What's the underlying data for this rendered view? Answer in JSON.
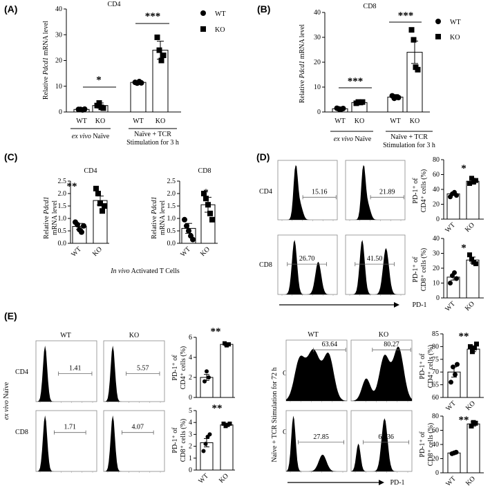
{
  "panels": {
    "A": {
      "label": "(A)",
      "title": "CD4",
      "ylabel_pre": "Relative ",
      "ylabel_gene": "Pdcd1",
      "ylabel_post": " mRNA level",
      "ylim": [
        0,
        40
      ],
      "yticks": [
        "0",
        "10",
        "20",
        "30",
        "40"
      ],
      "categories": [
        "WT",
        "KO",
        "WT",
        "KO"
      ],
      "group1_a": "ex vivo",
      "group1_b": " Naïve",
      "group2_l1": "Naïve + TCR",
      "group2_l2": "Stimulation for 3 h",
      "legend": [
        "WT",
        "KO"
      ],
      "sig": [
        "*",
        "***"
      ],
      "means": [
        1,
        2.5,
        11.5,
        24
      ],
      "errors": [
        0.3,
        1,
        0.5,
        3.5
      ],
      "points": [
        [
          1,
          1,
          0.8,
          1.1
        ],
        [
          2.5,
          3.5,
          1.8,
          1.5
        ],
        [
          11.5,
          11.2,
          11.8,
          11.3
        ],
        [
          29,
          24,
          20,
          22
        ]
      ]
    },
    "B": {
      "label": "(B)",
      "title": "CD8",
      "ylabel_pre": "Relative ",
      "ylabel_gene": "Pdcd1",
      "ylabel_post": " mRNA level",
      "ylim": [
        0,
        40
      ],
      "yticks": [
        "0",
        "10",
        "20",
        "30",
        "40"
      ],
      "categories": [
        "WT",
        "KO",
        "WT",
        "KO"
      ],
      "group1_a": "ex vivo",
      "group1_b": " Naïve",
      "group2_l1": "Naïve + TCR",
      "group2_l2": "Stimulation for 3 h",
      "legend": [
        "WT",
        "KO"
      ],
      "sig": [
        "***",
        "***"
      ],
      "means": [
        1.3,
        3.8,
        6,
        24
      ],
      "errors": [
        0.4,
        0.5,
        1,
        4.5
      ],
      "points": [
        [
          1.5,
          1.2,
          1.1,
          1.4
        ],
        [
          3.5,
          4,
          3.8,
          4
        ],
        [
          6.5,
          5.5,
          6,
          5.8
        ],
        [
          33,
          29,
          18,
          17
        ]
      ]
    },
    "C": {
      "label": "(C)",
      "caption_a": "In vivo",
      "caption_b": " Activated T Cells",
      "ylabel_pre": "Relative ",
      "ylabel_gene": "Pdcd1",
      "ylabel_l2": "mRNA level",
      "ylim": [
        0,
        2.5
      ],
      "yticks": [
        "0.0",
        "0.5",
        "1.0",
        "1.5",
        "2.0",
        "2.5"
      ],
      "subplots": [
        {
          "title": "CD4",
          "sig": "**",
          "categories": [
            "WT",
            "KO"
          ],
          "means": [
            0.68,
            1.72
          ],
          "errors": [
            0.12,
            0.18
          ],
          "points": [
            [
              0.85,
              0.75,
              0.55,
              0.45,
              0.7
            ],
            [
              2.2,
              2.0,
              1.6,
              1.3,
              1.5
            ]
          ]
        },
        {
          "title": "CD8",
          "sig": "*",
          "categories": [
            "WT",
            "KO"
          ],
          "means": [
            0.6,
            1.55
          ],
          "errors": [
            0.2,
            0.3
          ],
          "points": [
            [
              0.95,
              0.7,
              0.5,
              0.3,
              0.15
            ],
            [
              2.0,
              1.8,
              1.55,
              1.2,
              0.95
            ]
          ]
        }
      ]
    },
    "D": {
      "label": "(D)",
      "xaxis_label": "PD-1",
      "row_labels": [
        "CD4",
        "CD8"
      ],
      "col_labels": [
        "WT",
        "KO"
      ],
      "hist_values": [
        "15.16",
        "21.89",
        "26.70",
        "41.50"
      ],
      "bars": [
        {
          "ylabel_l1": "PD-1⁺ of",
          "ylabel_l2": "CD4⁺ cells (%)",
          "ylim": [
            0,
            80
          ],
          "yticks": [
            "0",
            "20",
            "40",
            "60",
            "80"
          ],
          "sig": "*",
          "categories": [
            "WT",
            "KO"
          ],
          "means": [
            34,
            51
          ],
          "errors": [
            2,
            4
          ],
          "points": [
            [
              30,
              34,
              36,
              32
            ],
            [
              48,
              55,
              50,
              52
            ]
          ]
        },
        {
          "ylabel_l1": "PD-1⁺ of",
          "ylabel_l2": "CD8⁺ cells (%)",
          "ylim": [
            0,
            40
          ],
          "yticks": [
            "0",
            "10",
            "20",
            "30",
            "40"
          ],
          "sig": "*",
          "categories": [
            "WT",
            "KO"
          ],
          "means": [
            14,
            25.5
          ],
          "errors": [
            2,
            2
          ],
          "points": [
            [
              10,
              15,
              17,
              13
            ],
            [
              29,
              26,
              24,
              23
            ]
          ]
        }
      ]
    },
    "E": {
      "label": "(E)",
      "left_side_a": "ex vivo",
      "left_side_b": " Naïve",
      "right_side": "Naïve + TCR Stimulation for 72 h",
      "row_labels": [
        "CD4",
        "CD8"
      ],
      "col_labels": [
        "WT",
        "KO"
      ],
      "xaxis_label": "PD-1",
      "left_hist_values": [
        "1.41",
        "5.57",
        "1.71",
        "4.07"
      ],
      "right_hist_values": [
        "63.64",
        "80.27",
        "27.85",
        "67.36"
      ],
      "left_bars": [
        {
          "ylabel_l1": "PD-1⁺ of",
          "ylabel_l2": "CD4⁺ cells (%)",
          "ylim": [
            0,
            6
          ],
          "yticks": [
            "0",
            "2",
            "4",
            "6"
          ],
          "sig": "**",
          "categories": [
            "WT",
            "KO"
          ],
          "means": [
            2.0,
            5.3
          ],
          "errors": [
            0.3,
            0.15
          ],
          "points": [
            [
              1.6,
              2.6,
              2.0
            ],
            [
              5.4,
              5.2,
              5.3
            ]
          ]
        },
        {
          "ylabel_l1": "PD-1⁺ of",
          "ylabel_l2": "CD8⁺ cells (%)",
          "ylim": [
            0,
            5
          ],
          "yticks": [
            "0",
            "1",
            "2",
            "3",
            "4",
            "5"
          ],
          "sig": "**",
          "categories": [
            "WT",
            "KO"
          ],
          "means": [
            2.3,
            3.8
          ],
          "errors": [
            0.35,
            0.1
          ],
          "points": [
            [
              1.6,
              2.2,
              2.8,
              3.0
            ],
            [
              3.9,
              3.7,
              3.8,
              3.9
            ]
          ]
        }
      ],
      "right_bars": [
        {
          "ylabel_l1": "PD-1⁺ of",
          "ylabel_l2": "CD4⁺ cells (%)",
          "ylim": [
            60,
            85
          ],
          "yticks": [
            "60",
            "65",
            "70",
            "75",
            "80",
            "85"
          ],
          "sig": "**",
          "categories": [
            "WT",
            "KO"
          ],
          "means": [
            70,
            79
          ],
          "errors": [
            2,
            1
          ],
          "points": [
            [
              66,
              72,
              69,
              73
            ],
            [
              80,
              78,
              79.5,
              81
            ]
          ]
        },
        {
          "ylabel_l1": "PD-1⁺ of",
          "ylabel_l2": "CD8⁺ cells (%)",
          "ylim": [
            0,
            80
          ],
          "yticks": [
            "0",
            "20",
            "40",
            "60",
            "80"
          ],
          "sig": "**",
          "categories": [
            "WT",
            "KO"
          ],
          "means": [
            28,
            69
          ],
          "errors": [
            1,
            3
          ],
          "points": [
            [
              27,
              28,
              29
            ],
            [
              66,
              71,
              70
            ]
          ]
        }
      ]
    }
  },
  "chart_data": [
    {
      "type": "bar",
      "title": "CD4",
      "ylabel": "Relative Pdcd1 mRNA level",
      "categories": [
        "WT",
        "KO",
        "WT",
        "KO"
      ],
      "values": [
        1,
        2.5,
        11.5,
        24
      ],
      "ylim": [
        0,
        40
      ]
    },
    {
      "type": "bar",
      "title": "CD8",
      "ylabel": "Relative Pdcd1 mRNA level",
      "categories": [
        "WT",
        "KO",
        "WT",
        "KO"
      ],
      "values": [
        1.3,
        3.8,
        6,
        24
      ],
      "ylim": [
        0,
        40
      ]
    },
    {
      "type": "bar",
      "title": "CD4",
      "ylabel": "Relative Pdcd1 mRNA level",
      "categories": [
        "WT",
        "KO"
      ],
      "values": [
        0.68,
        1.72
      ],
      "ylim": [
        0,
        2.5
      ]
    },
    {
      "type": "bar",
      "title": "CD8",
      "ylabel": "Relative Pdcd1 mRNA level",
      "categories": [
        "WT",
        "KO"
      ],
      "values": [
        0.6,
        1.55
      ],
      "ylim": [
        0,
        2.5
      ]
    },
    {
      "type": "bar",
      "ylabel": "PD-1⁺ of CD4⁺ cells (%)",
      "categories": [
        "WT",
        "KO"
      ],
      "values": [
        34,
        51
      ],
      "ylim": [
        0,
        80
      ]
    },
    {
      "type": "bar",
      "ylabel": "PD-1⁺ of CD8⁺ cells (%)",
      "categories": [
        "WT",
        "KO"
      ],
      "values": [
        14,
        25.5
      ],
      "ylim": [
        0,
        40
      ]
    },
    {
      "type": "bar",
      "ylabel": "PD-1⁺ of CD4⁺ cells (%)",
      "categories": [
        "WT",
        "KO"
      ],
      "values": [
        2.0,
        5.3
      ],
      "ylim": [
        0,
        6
      ]
    },
    {
      "type": "bar",
      "ylabel": "PD-1⁺ of CD8⁺ cells (%)",
      "categories": [
        "WT",
        "KO"
      ],
      "values": [
        2.3,
        3.8
      ],
      "ylim": [
        0,
        5
      ]
    },
    {
      "type": "bar",
      "ylabel": "PD-1⁺ of CD4⁺ cells (%)",
      "categories": [
        "WT",
        "KO"
      ],
      "values": [
        70,
        79
      ],
      "ylim": [
        60,
        85
      ]
    },
    {
      "type": "bar",
      "ylabel": "PD-1⁺ of CD8⁺ cells (%)",
      "categories": [
        "WT",
        "KO"
      ],
      "values": [
        28,
        69
      ],
      "ylim": [
        0,
        80
      ]
    }
  ]
}
